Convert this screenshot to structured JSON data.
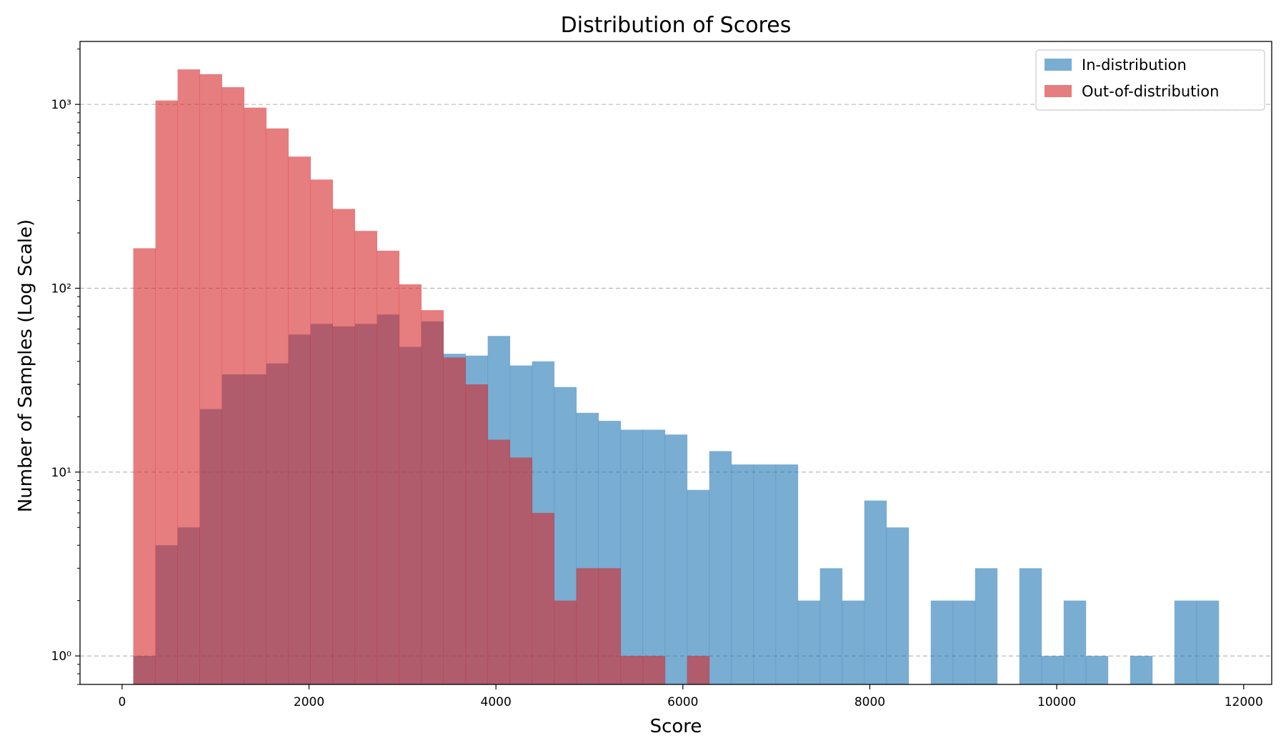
{
  "chart_data": {
    "type": "bar",
    "title": "Distribution of Scores",
    "xlabel": "Score",
    "ylabel": "Number of Samples (Log Scale)",
    "xlim": [
      -450,
      12300
    ],
    "ylim": [
      0.7,
      2200
    ],
    "yscale": "log",
    "grid": "y-major-dashed",
    "legend_position": "top-right",
    "x_ticks": [
      0,
      2000,
      4000,
      6000,
      8000,
      10000,
      12000
    ],
    "x_tick_labels": [
      "0",
      "2000",
      "4000",
      "6000",
      "8000",
      "10000",
      "12000"
    ],
    "y_ticks": [
      1,
      10,
      100,
      1000
    ],
    "y_tick_labels": [
      "10⁰",
      "10¹",
      "10²",
      "10³"
    ],
    "bin_edges": [
      120,
      357,
      594,
      831,
      1068,
      1305,
      1542,
      1779,
      2016,
      2253,
      2490,
      2727,
      2964,
      3201,
      3438,
      3675,
      3912,
      4149,
      4386,
      4623,
      4860,
      5097,
      5334,
      5571,
      5808,
      6045,
      6282,
      6519,
      6756,
      6993,
      7230,
      7467,
      7704,
      7941,
      8178,
      8415,
      8652,
      8889,
      9126,
      9363,
      9600,
      9837,
      10074,
      10311,
      10548,
      10785,
      11022,
      11259,
      11496,
      11733
    ],
    "series": [
      {
        "name": "In-distribution",
        "color": "#1f77b4",
        "opacity": 0.6,
        "values": [
          1,
          4,
          5,
          22,
          34,
          34,
          39,
          56,
          64,
          62,
          64,
          72,
          48,
          66,
          44,
          43,
          55,
          38,
          40,
          29,
          21,
          19,
          17,
          17,
          16,
          8,
          13,
          11,
          11,
          11,
          2,
          3,
          2,
          7,
          5,
          0,
          2,
          2,
          3,
          0,
          3,
          1,
          2,
          1,
          0,
          1,
          0,
          2,
          2
        ]
      },
      {
        "name": "Out-of-distribution",
        "color": "#d62728",
        "opacity": 0.6,
        "values": [
          165,
          1050,
          1550,
          1460,
          1240,
          960,
          740,
          520,
          390,
          270,
          205,
          160,
          105,
          76,
          42,
          30,
          15,
          12,
          6,
          2,
          3,
          3,
          1,
          1,
          0,
          1,
          0,
          0,
          0,
          0,
          0,
          0,
          0,
          0,
          0,
          0,
          0,
          0,
          0,
          0,
          0,
          0,
          0,
          0,
          0,
          0,
          0,
          0,
          0
        ]
      }
    ]
  }
}
